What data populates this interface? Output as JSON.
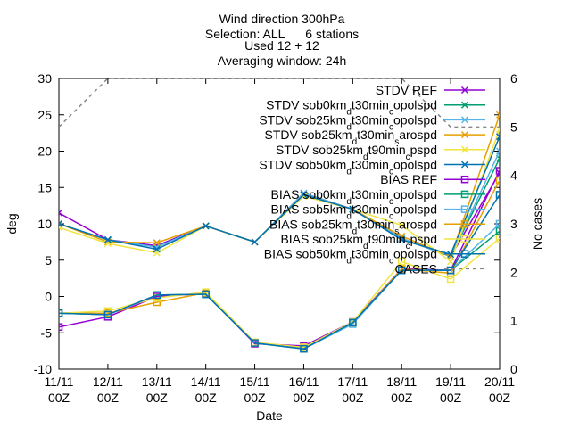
{
  "chart_data": {
    "type": "line",
    "title_lines": [
      "Wind direction 300hPa",
      "Selection: ALL      6 stations",
      "Used 12 + 12",
      "Averaging window: 24h"
    ],
    "xlabel": "Date",
    "ylabel": "deg",
    "y2label": "No cases",
    "ylim": [
      -10,
      30
    ],
    "y2lim": [
      0,
      6
    ],
    "yticks": [
      -10,
      -5,
      0,
      5,
      10,
      15,
      20,
      25,
      30
    ],
    "y2ticks": [
      0,
      1,
      2,
      3,
      4,
      5,
      6
    ],
    "categories": [
      [
        "11/11",
        "00Z"
      ],
      [
        "12/11",
        "00Z"
      ],
      [
        "13/11",
        "00Z"
      ],
      [
        "14/11",
        "00Z"
      ],
      [
        "15/11",
        "00Z"
      ],
      [
        "16/11",
        "00Z"
      ],
      [
        "17/11",
        "00Z"
      ],
      [
        "18/11",
        "00Z"
      ],
      [
        "19/11",
        "00Z"
      ],
      [
        "20/11",
        "00Z"
      ]
    ],
    "legend_position": "top-right",
    "series": [
      {
        "name": "STDV REF",
        "base": "sob",
        "sub": "",
        "rest": "",
        "color": "#9400d3",
        "marker": "x",
        "values": [
          11.5,
          7.8,
          7.0,
          9.7,
          7.5,
          14.2,
          12.0,
          8.0,
          5.5,
          17.0
        ]
      },
      {
        "name": "STDV sob0kmdt30mincopolspd",
        "base": "STDV sob0km",
        "sub": "d",
        "mid": "t30min",
        "sub2": "c",
        "rest": "opolspd",
        "color": "#009e73",
        "marker": "x",
        "values": [
          10.0,
          7.8,
          6.8,
          9.7,
          7.5,
          14.2,
          12.0,
          8.0,
          5.5,
          19.0
        ]
      },
      {
        "name": "STDV sob25kmdt30mincopolspd",
        "base": "STDV sob25km",
        "sub": "d",
        "mid": "t30min",
        "sub2": "c",
        "rest": "opolspd",
        "color": "#56b4e9",
        "marker": "x",
        "values": [
          10.0,
          7.8,
          6.8,
          9.7,
          7.5,
          14.2,
          12.0,
          8.0,
          5.5,
          20.0
        ]
      },
      {
        "name": "STDV sob25kmdt30minsarospd",
        "base": "STDV sob25km",
        "sub": "d",
        "mid": "t30min",
        "sub2": "s",
        "rest": "arospd",
        "color": "#e69f00",
        "marker": "x",
        "values": [
          10.0,
          7.5,
          7.4,
          9.7,
          7.5,
          14.0,
          12.0,
          8.3,
          5.5,
          25.0
        ]
      },
      {
        "name": "STDV sob25kmdt90mincpspd",
        "base": "STDV sob25km",
        "sub": "d",
        "mid": "t90min",
        "sub2": "c",
        "rest": "pspd",
        "color": "#f0e442",
        "marker": "x",
        "values": [
          9.5,
          7.3,
          6.0,
          9.7,
          7.5,
          13.8,
          12.0,
          9.8,
          4.8,
          23.0
        ]
      },
      {
        "name": "STDV sob50kmdt30mincopolspd",
        "base": "STDV sob50km",
        "sub": "d",
        "mid": "t30min",
        "sub2": "c",
        "rest": "opolspd",
        "color": "#0072b2",
        "marker": "x",
        "values": [
          10.0,
          7.8,
          6.5,
          9.7,
          7.5,
          14.0,
          12.0,
          7.8,
          5.8,
          22.0
        ]
      },
      {
        "name": "BIAS REF",
        "color": "#9400d3",
        "marker": "s",
        "values": [
          -4.2,
          -2.8,
          0.0,
          0.4,
          -6.5,
          -6.8,
          -3.5,
          3.8,
          3.6,
          17.3
        ]
      },
      {
        "name": "BIAS sob0kmdt30mincopolspd",
        "color": "#009e73",
        "marker": "s",
        "values": [
          -2.3,
          -2.5,
          0.2,
          0.3,
          -6.4,
          -7.2,
          -3.6,
          3.6,
          3.6,
          9.0
        ]
      },
      {
        "name": "BIAS sob5kmdt30mincopolspd",
        "color": "#56b4e9",
        "marker": "s",
        "values": [
          -2.3,
          -2.5,
          0.2,
          0.3,
          -6.4,
          -7.2,
          -3.8,
          3.6,
          3.6,
          10.0
        ]
      },
      {
        "name": "BIAS sob25kmdt30minsarospd",
        "color": "#e69f00",
        "marker": "s",
        "values": [
          -2.3,
          -2.3,
          -0.8,
          0.5,
          -6.4,
          -7.0,
          -3.6,
          3.8,
          3.2,
          16.0
        ]
      },
      {
        "name": "BIAS sob25kmdt90mincpspd",
        "color": "#f0e442",
        "marker": "s",
        "values": [
          -2.3,
          -2.0,
          -0.2,
          0.6,
          -6.3,
          -7.0,
          -3.5,
          4.8,
          2.4,
          8.0
        ]
      },
      {
        "name": "BIAS sob50kmdt30mincopolspd",
        "color": "#0072b2",
        "marker": "s",
        "values": [
          -2.3,
          -2.5,
          0.2,
          0.3,
          -6.4,
          -7.2,
          -3.6,
          3.6,
          3.6,
          14.0
        ]
      },
      {
        "name": "CASES",
        "color": "#888888",
        "marker": "none",
        "axis": "y2",
        "dashed": true,
        "values": [
          5.0,
          6.0,
          6.0,
          6.0,
          6.0,
          6.0,
          6.0,
          6.0,
          5.0,
          5.0
        ]
      }
    ],
    "legend": [
      {
        "base": "STDV REF"
      },
      {
        "base": "STDV sob0km",
        "sub": "d",
        "mid": "t30min",
        "sub2": "c",
        "rest": "opolspd"
      },
      {
        "base": "STDV sob25km",
        "sub": "d",
        "mid": "t30min",
        "sub2": "c",
        "rest": "opolspd"
      },
      {
        "base": "STDV sob25km",
        "sub": "d",
        "mid": "t30min",
        "sub2": "s",
        "rest": "arospd"
      },
      {
        "base": "STDV sob25km",
        "sub": "d",
        "mid": "t90min",
        "sub2": "c",
        "rest": "pspd"
      },
      {
        "base": "STDV sob50km",
        "sub": "d",
        "mid": "t30min",
        "sub2": "c",
        "rest": "opolspd"
      },
      {
        "base": "BIAS REF"
      },
      {
        "base": "BIAS sob0km",
        "sub": "d",
        "mid": "t30min",
        "sub2": "c",
        "rest": "opolspd"
      },
      {
        "base": "BIAS sob5km",
        "sub": "d",
        "mid": "t30min",
        "sub2": "c",
        "rest": "opolspd"
      },
      {
        "base": "BIAS sob25km",
        "sub": "d",
        "mid": "t30min",
        "sub2": "s",
        "rest": "arospd"
      },
      {
        "base": "BIAS sob25km",
        "sub": "d",
        "mid": "t90min",
        "sub2": "c",
        "rest": "pspd"
      },
      {
        "base": "BIAS sob50km",
        "sub": "d",
        "mid": "t30min",
        "sub2": "c",
        "rest": "opolspd"
      },
      {
        "base": "CASES"
      }
    ]
  }
}
